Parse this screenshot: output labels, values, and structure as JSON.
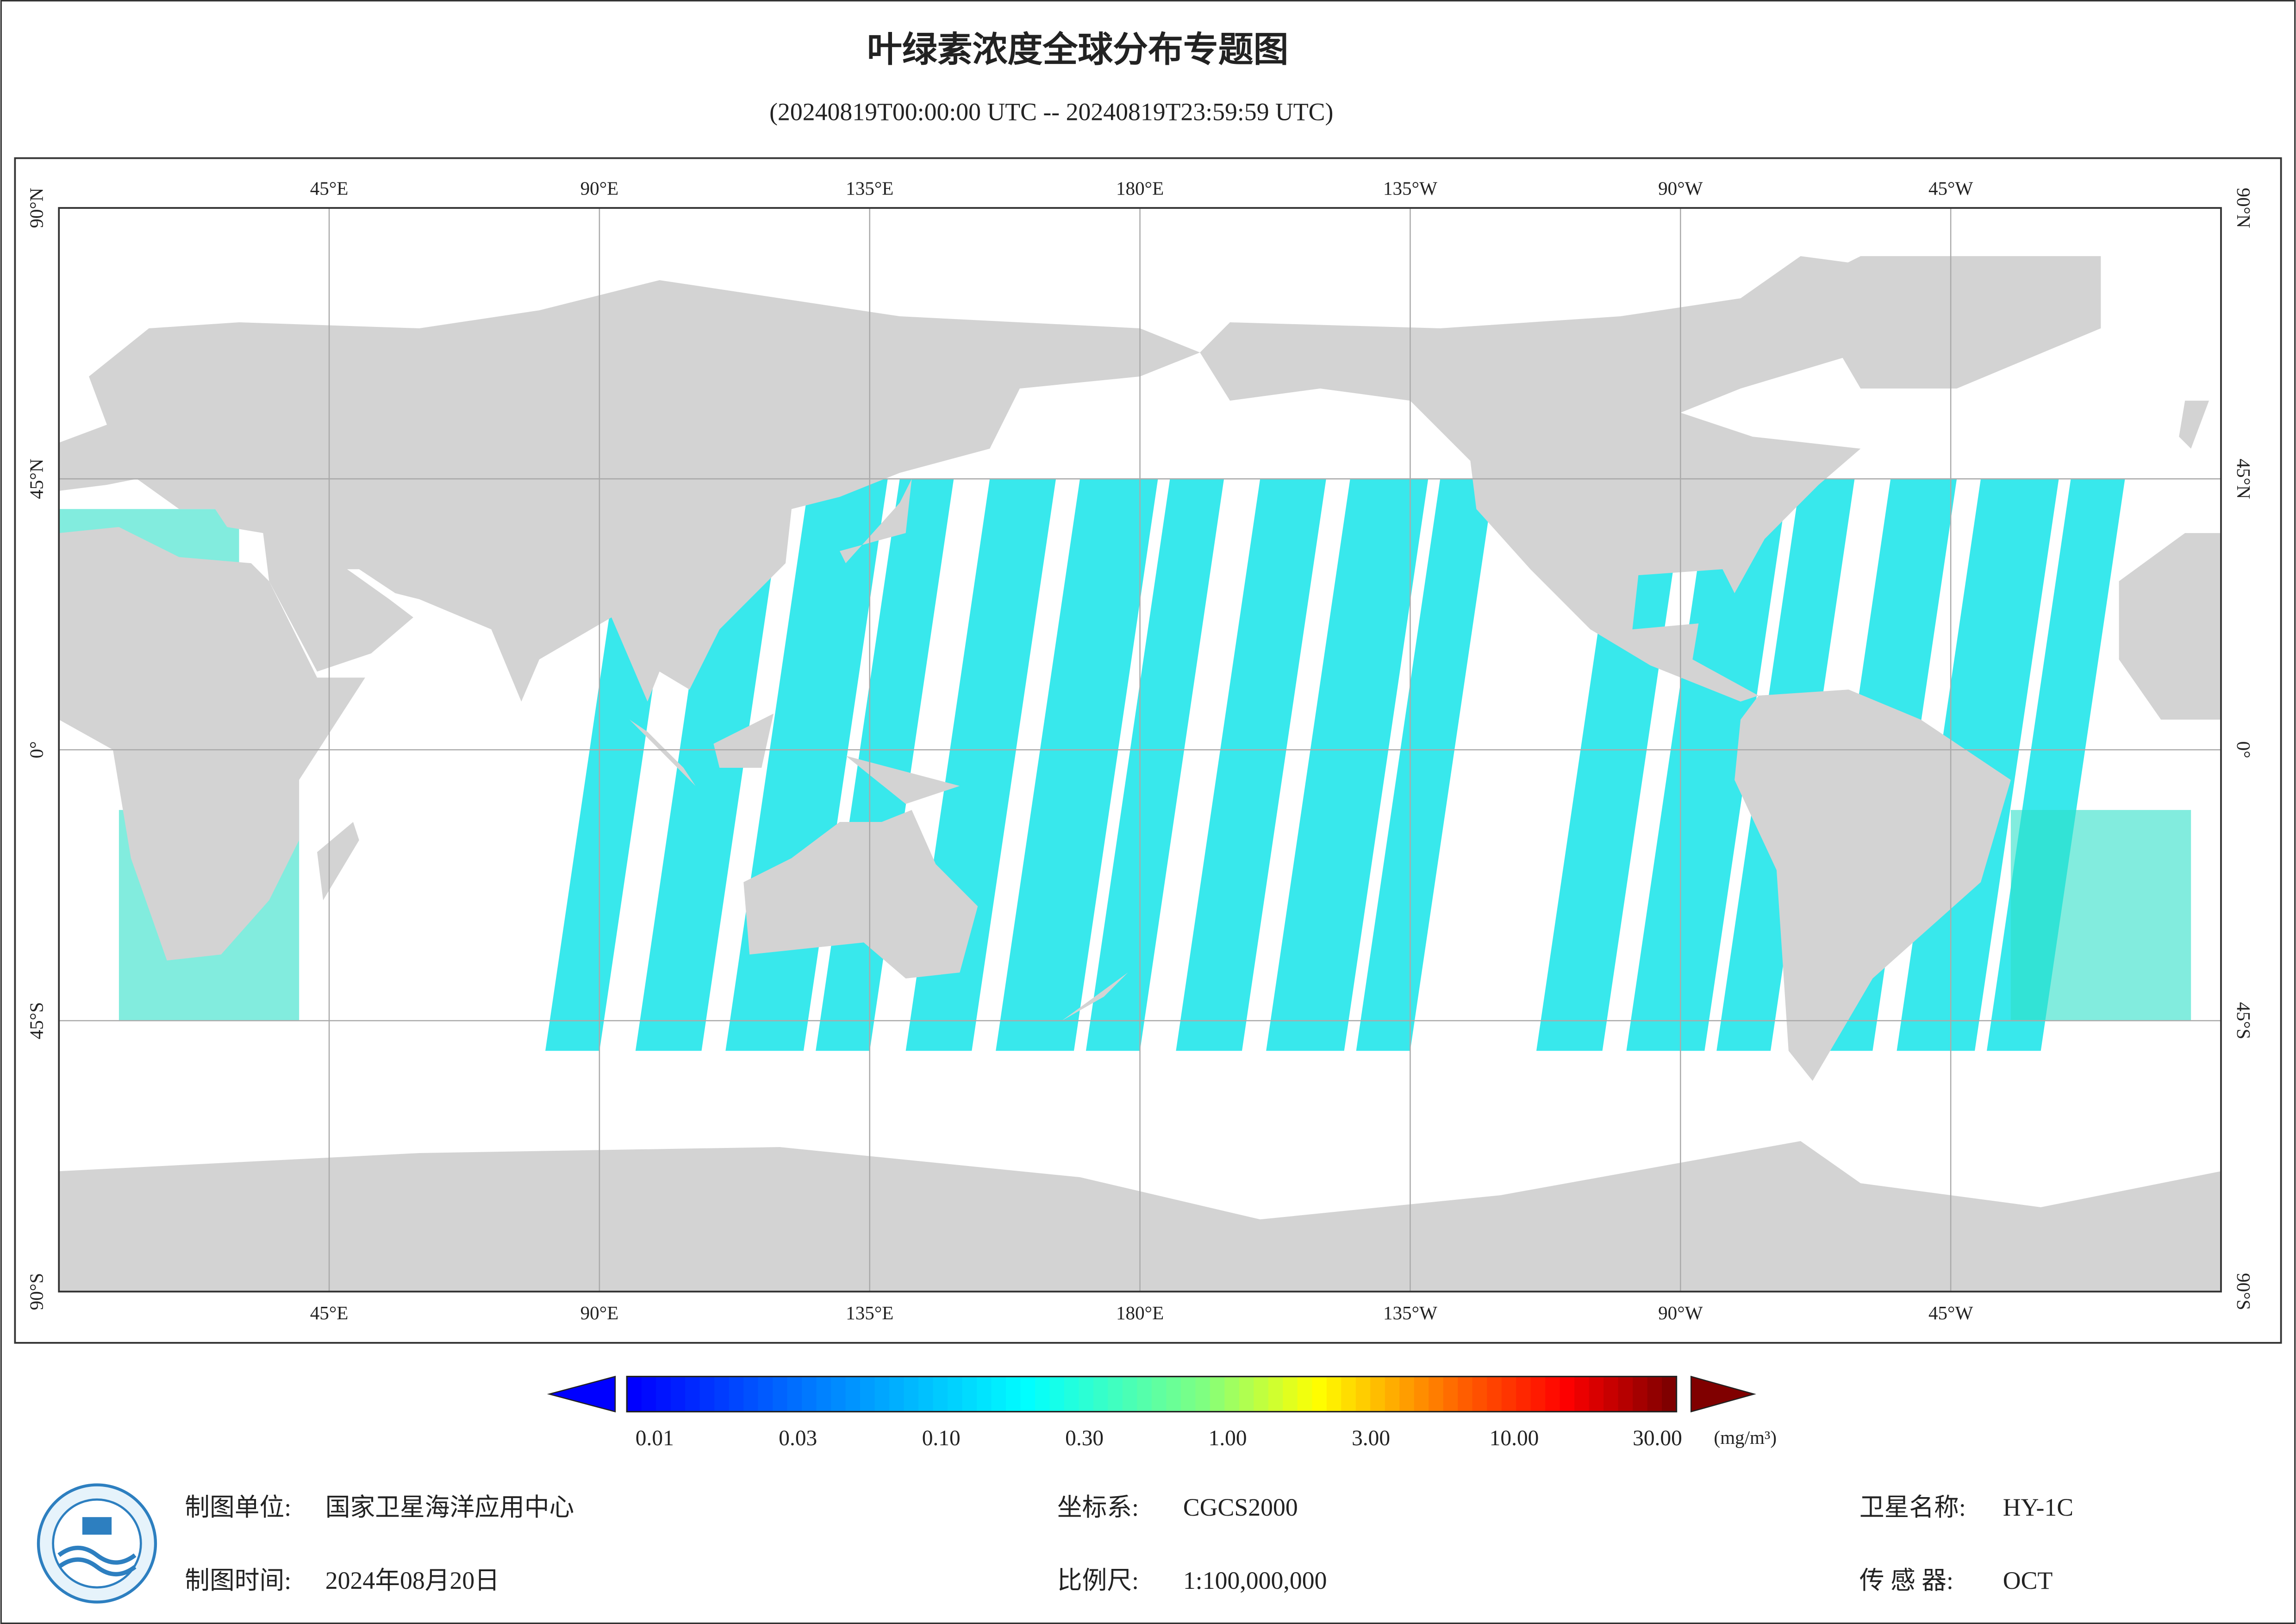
{
  "header": {
    "title": "叶绿素浓度全球分布专题图",
    "subtitle": "(20240819T00:00:00 UTC -- 20240819T23:59:59 UTC)"
  },
  "map": {
    "longitude_labels": [
      "45°E",
      "90°E",
      "135°E",
      "180°E",
      "135°W",
      "90°W",
      "45°W"
    ],
    "latitude_labels": [
      "90°N",
      "45°N",
      "0°",
      "45°S",
      "90°S"
    ]
  },
  "colorbar": {
    "labels": [
      "0.01",
      "0.03",
      "0.10",
      "0.30",
      "1.00",
      "3.00",
      "10.00",
      "30.00"
    ],
    "unit": "(mg/m³)"
  },
  "footer": {
    "unit_label": "制图单位:",
    "unit_value": "国家卫星海洋应用中心",
    "time_label": "制图时间:",
    "time_value": "2024年08月20日",
    "crs_label": "坐标系:",
    "crs_value": "CGCS2000",
    "scale_label": "比例尺:",
    "scale_value": "1:100,000,000",
    "satellite_label": "卫星名称:",
    "satellite_value": "HY-1C",
    "sensor_label": "传 感 器:",
    "sensor_value": "OCT"
  }
}
